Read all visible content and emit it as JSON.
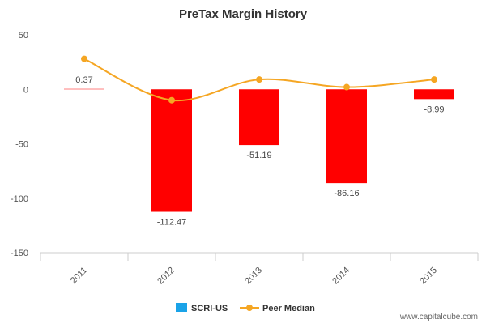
{
  "chart_data": {
    "type": "bar",
    "title": "PreTax Margin History",
    "categories": [
      "2011",
      "2012",
      "2013",
      "2014",
      "2015"
    ],
    "ylim": [
      -150,
      50
    ],
    "yticks": [
      50,
      0,
      -50,
      -100,
      -150
    ],
    "grid": false,
    "legend_position": "bottom",
    "series": [
      {
        "name": "SCRI-US",
        "kind": "bar",
        "color": "#ff0000",
        "legend_color": "#1aa3e8",
        "values": [
          0.37,
          -112.47,
          -51.19,
          -86.16,
          -8.99
        ],
        "labels": [
          "0.37",
          "-112.47",
          "-51.19",
          "-86.16",
          "-8.99"
        ]
      },
      {
        "name": "Peer Median",
        "kind": "line",
        "color": "#f5a623",
        "values": [
          28,
          -10,
          9,
          2,
          9
        ]
      }
    ]
  },
  "watermark": "www.capitalcube.com"
}
